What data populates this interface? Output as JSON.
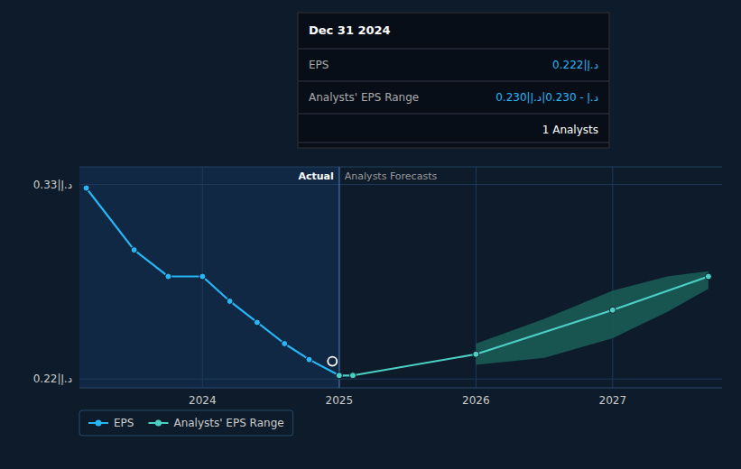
{
  "chart_data": {
    "type": "line",
    "xlim": [
      2023.1,
      2027.8
    ],
    "xticks": [
      2024,
      2025,
      2026,
      2027
    ],
    "ylim": [
      0.215,
      0.34
    ],
    "yticks": [
      {
        "value": 0.22,
        "label": "0.22|د.إ"
      },
      {
        "value": 0.33,
        "label": "0.33|د.إ"
      }
    ],
    "grid": true,
    "legend": "lower left",
    "divider": {
      "x": 2025.0,
      "labels": [
        "Actual",
        "Analysts Forecasts"
      ]
    },
    "series": [
      {
        "name": "EPS",
        "type": "line",
        "color": "#29b6f6",
        "marker": "circle",
        "x": [
          2023.15,
          2023.5,
          2023.75,
          2024.0,
          2024.2,
          2024.4,
          2024.6,
          2024.78,
          2025.0
        ],
        "values": [
          0.328,
          0.293,
          0.278,
          0.278,
          0.264,
          0.252,
          0.24,
          0.231,
          0.222
        ]
      },
      {
        "name": "Analysts' EPS Range",
        "type": "line",
        "color": "#4dd0c4",
        "marker": "circle",
        "x": [
          2025.0,
          2025.1,
          2026.0,
          2027.0,
          2027.7
        ],
        "values": [
          0.222,
          0.222,
          0.234,
          0.259,
          0.278
        ]
      },
      {
        "type": "area",
        "color": "#1a5c55",
        "x": [
          2026.0,
          2026.5,
          2027.0,
          2027.4,
          2027.7
        ],
        "values": [
          0.24,
          0.254,
          0.27,
          0.278,
          0.281
        ],
        "lower": [
          0.228,
          0.232,
          0.243,
          0.258,
          0.271
        ]
      },
      {
        "type": "scatter",
        "color": "#ffffff",
        "marker": "open-circle",
        "x": [
          2024.95
        ],
        "values": [
          0.23
        ]
      }
    ],
    "tooltip": {
      "title": "Dec 31 2024",
      "rows": [
        {
          "label": "EPS",
          "value": "0.222|د.إ"
        },
        {
          "label": "Analysts' EPS Range",
          "value": "0.230|د.إ - 0.230|د.إ"
        }
      ],
      "footer": "1 Analysts"
    }
  }
}
